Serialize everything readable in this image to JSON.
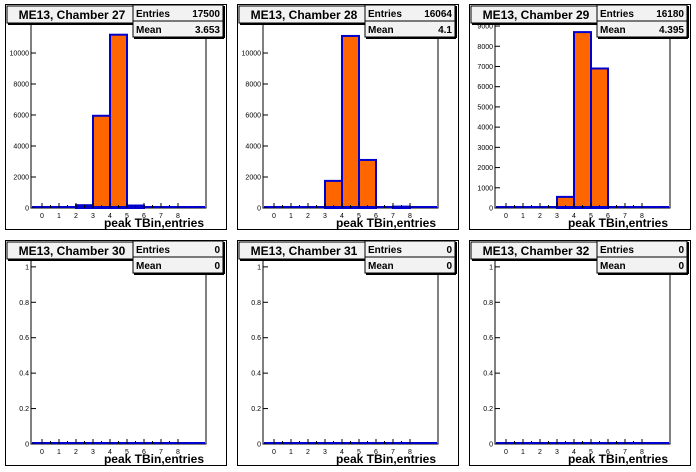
{
  "chart_data": [
    {
      "type": "bar",
      "title": "ME13, Chamber 27",
      "xlabel": "peak TBin,entries",
      "stats": {
        "entries_label": "Entries",
        "entries": "17500",
        "mean_label": "Mean",
        "mean": "3.653"
      },
      "x_ticks": [
        "0",
        "1",
        "2",
        "3",
        "4",
        "5",
        "6",
        "7",
        "8"
      ],
      "y_ticks": [
        "0",
        "2000",
        "4000",
        "6000",
        "8000",
        "10000"
      ],
      "ylim": [
        0,
        12000
      ],
      "bins": [
        [
          2,
          3,
          180
        ],
        [
          3,
          4,
          5950
        ],
        [
          4,
          5,
          11180
        ],
        [
          5,
          6,
          160
        ]
      ],
      "fill_color": "#ff6600",
      "line_color": "#0000cc"
    },
    {
      "type": "bar",
      "title": "ME13, Chamber 28",
      "xlabel": "peak TBin,entries",
      "stats": {
        "entries_label": "Entries",
        "entries": "16064",
        "mean_label": "Mean",
        "mean": "4.1"
      },
      "x_ticks": [
        "0",
        "1",
        "2",
        "3",
        "4",
        "5",
        "6",
        "7",
        "8"
      ],
      "y_ticks": [
        "0",
        "2000",
        "4000",
        "6000",
        "8000",
        "10000"
      ],
      "ylim": [
        0,
        12000
      ],
      "bins": [
        [
          3,
          4,
          1750
        ],
        [
          4,
          5,
          11100
        ],
        [
          5,
          6,
          3100
        ],
        [
          7,
          8,
          90
        ]
      ],
      "fill_color": "#ff6600",
      "line_color": "#0000cc"
    },
    {
      "type": "bar",
      "title": "ME13, Chamber 29",
      "xlabel": "peak TBin,entries",
      "stats": {
        "entries_label": "Entries",
        "entries": "16180",
        "mean_label": "Mean",
        "mean": "4.395"
      },
      "x_ticks": [
        "0",
        "1",
        "2",
        "3",
        "4",
        "5",
        "6",
        "7",
        "8"
      ],
      "y_ticks": [
        "0",
        "1000",
        "2000",
        "3000",
        "4000",
        "5000",
        "6000",
        "7000",
        "8000",
        "9000"
      ],
      "ylim": [
        0,
        9200
      ],
      "bins": [
        [
          3,
          4,
          550
        ],
        [
          4,
          5,
          8700
        ],
        [
          5,
          6,
          6900
        ]
      ],
      "fill_color": "#ff6600",
      "line_color": "#0000cc"
    },
    {
      "type": "bar",
      "title": "ME13, Chamber 30",
      "xlabel": "peak TBin,entries",
      "stats": {
        "entries_label": "Entries",
        "entries": "0",
        "mean_label": "Mean",
        "mean": "0"
      },
      "x_ticks": [
        "0",
        "1",
        "2",
        "3",
        "4",
        "5",
        "6",
        "7",
        "8"
      ],
      "y_ticks": [
        "0",
        "0.2",
        "0.4",
        "0.6",
        "0.8",
        "1"
      ],
      "ylim": [
        0,
        1.05
      ],
      "bins": [],
      "fill_color": "#ff6600",
      "line_color": "#0000cc"
    },
    {
      "type": "bar",
      "title": "ME13, Chamber 31",
      "xlabel": "peak TBin,entries",
      "stats": {
        "entries_label": "Entries",
        "entries": "0",
        "mean_label": "Mean",
        "mean": "0"
      },
      "x_ticks": [
        "0",
        "1",
        "2",
        "3",
        "4",
        "5",
        "6",
        "7",
        "8"
      ],
      "y_ticks": [
        "0",
        "0.2",
        "0.4",
        "0.6",
        "0.8",
        "1"
      ],
      "ylim": [
        0,
        1.05
      ],
      "bins": [],
      "fill_color": "#ff6600",
      "line_color": "#0000cc"
    },
    {
      "type": "bar",
      "title": "ME13, Chamber 32",
      "xlabel": "peak TBin,entries",
      "stats": {
        "entries_label": "Entries",
        "entries": "0",
        "mean_label": "Mean",
        "mean": "0"
      },
      "x_ticks": [
        "0",
        "1",
        "2",
        "3",
        "4",
        "5",
        "6",
        "7",
        "8"
      ],
      "y_ticks": [
        "0",
        "0.2",
        "0.4",
        "0.6",
        "0.8",
        "1"
      ],
      "ylim": [
        0,
        1.05
      ],
      "bins": [],
      "fill_color": "#ff6600",
      "line_color": "#0000cc"
    }
  ]
}
